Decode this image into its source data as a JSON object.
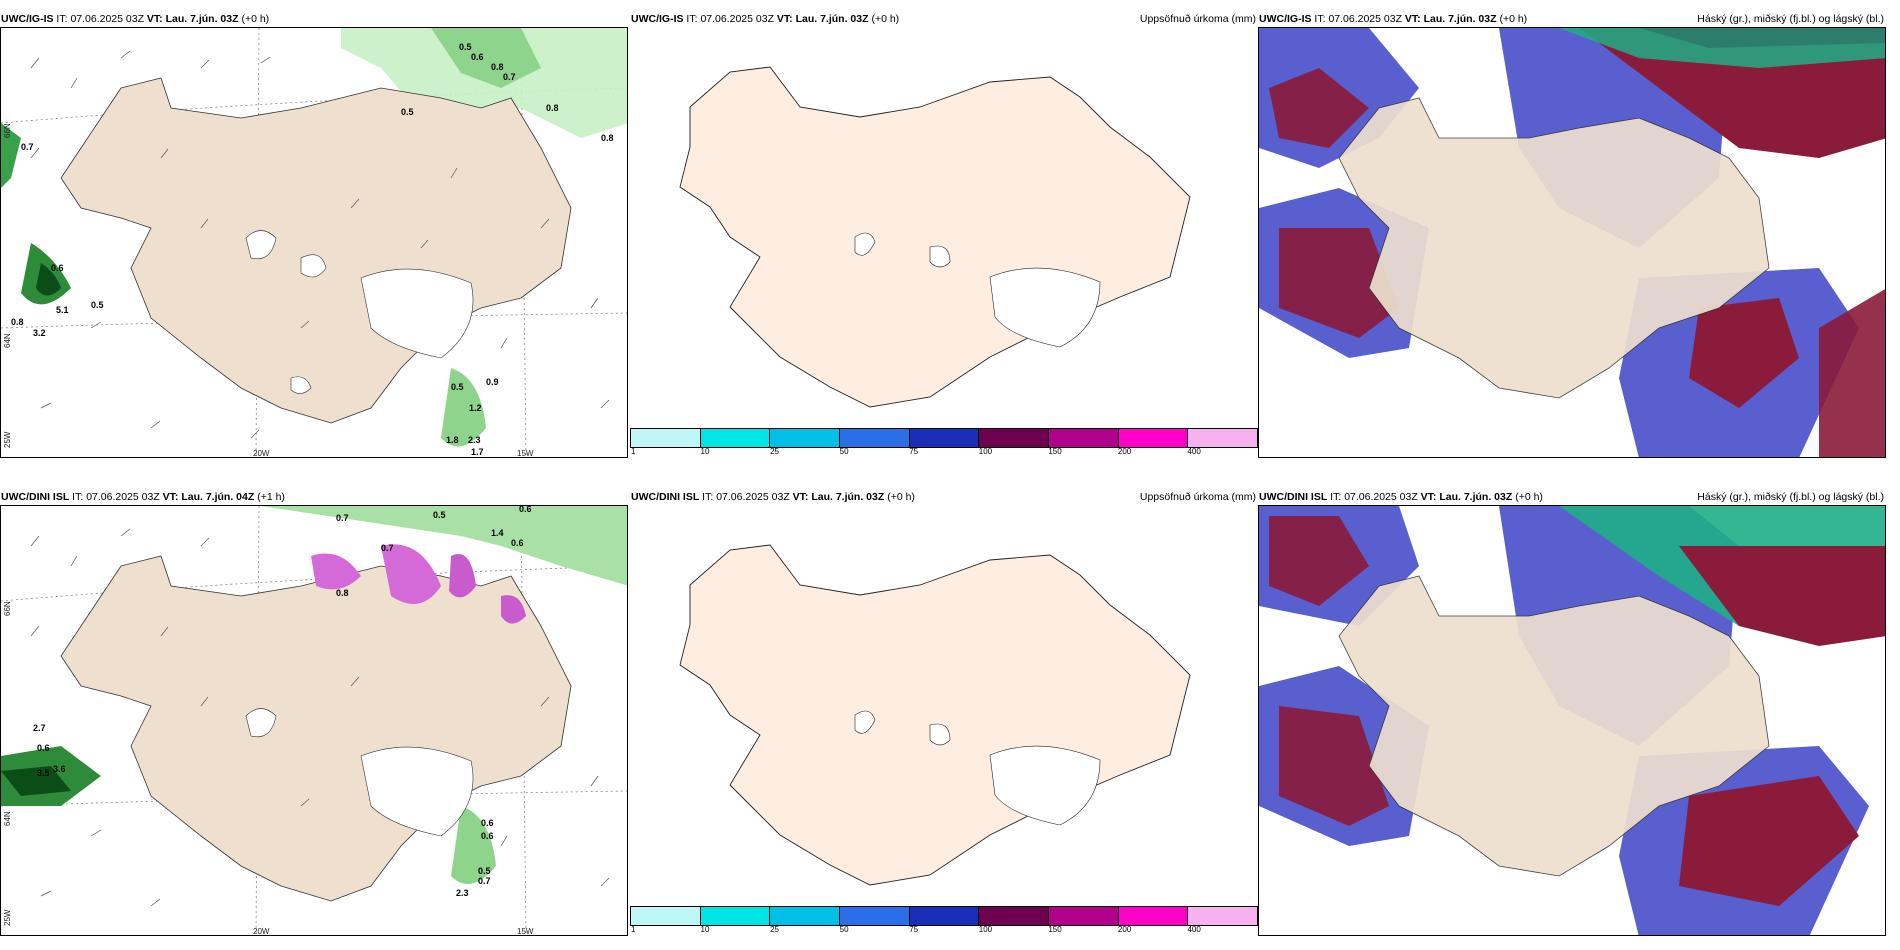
{
  "panels": {
    "p1": {
      "model": "UWC/IG-IS",
      "it_label": "IT:",
      "it": "07.06.2025 03Z",
      "vt_label": "VT:",
      "vt": "Lau. 7.jún. 03Z",
      "lead": "(+0 h)",
      "right_title": ""
    },
    "p2": {
      "model": "UWC/IG-IS",
      "it_label": "IT:",
      "it": "07.06.2025 03Z",
      "vt_label": "VT:",
      "vt": "Lau. 7.jún. 03Z",
      "lead": "(+0 h)",
      "right_title": "Uppsöfnuð úrkoma (mm)"
    },
    "p3": {
      "model": "UWC/IG-IS",
      "it_label": "IT:",
      "it": "07.06.2025 03Z",
      "vt_label": "VT:",
      "vt": "Lau. 7.jún. 03Z",
      "lead": "(+0 h)",
      "right_title": "Háský (gr.), miðský (fj.bl.) og lágský (bl.)"
    },
    "p4": {
      "model": "UWC/DINI ISL",
      "it_label": "IT:",
      "it": "07.06.2025 03Z",
      "vt_label": "VT:",
      "vt": "Lau. 7.jún. 04Z",
      "lead": "(+1 h)",
      "right_title": ""
    },
    "p5": {
      "model": "UWC/DINI ISL",
      "it_label": "IT:",
      "it": "07.06.2025 03Z",
      "vt_label": "VT:",
      "vt": "Lau. 7.jún. 03Z",
      "lead": "(+0 h)",
      "right_title": "Uppsöfnuð úrkoma (mm)"
    },
    "p6": {
      "model": "UWC/DINI ISL",
      "it_label": "IT:",
      "it": "07.06.2025 03Z",
      "vt_label": "VT:",
      "vt": "Lau. 7.jún. 03Z",
      "lead": "(+0 h)",
      "right_title": "Háský (gr.), miðský (fj.bl.) og lágský (bl.)"
    }
  },
  "axes": {
    "lon": [
      "20W",
      "15W"
    ],
    "lat": [
      "66N",
      "64N"
    ],
    "lat_left": "25W"
  },
  "colorbar": {
    "colors": [
      "#bff6f6",
      "#00e6e6",
      "#00c0e8",
      "#2a6fe8",
      "#1a2fb8",
      "#6e0050",
      "#b0008c",
      "#ff00c8",
      "#f5b2ee"
    ],
    "ticks": [
      "1",
      "10",
      "25",
      "50",
      "75",
      "100",
      "150",
      "200",
      "400"
    ]
  },
  "precip_labels_top": [
    "0.5",
    "0.6",
    "0.8",
    "0.7",
    "0.5",
    "0.8",
    "0.8",
    "0.7",
    "0.6",
    "0.5",
    "5.1",
    "3.2",
    "0.8",
    "0.9",
    "0.5",
    "1.2",
    "1.8",
    "2.3",
    "1.7"
  ],
  "precip_labels_bottom": [
    "0.7",
    "0.5",
    "0.6",
    "0.7",
    "0.8",
    "1.4",
    "0.6",
    "2.7",
    "0.6",
    "3.5",
    "3.6",
    "0.6",
    "0.6",
    "0.5",
    "0.7",
    "2.3"
  ],
  "land_color": "#eedfcf",
  "land_color_plain": "#fdeee1"
}
